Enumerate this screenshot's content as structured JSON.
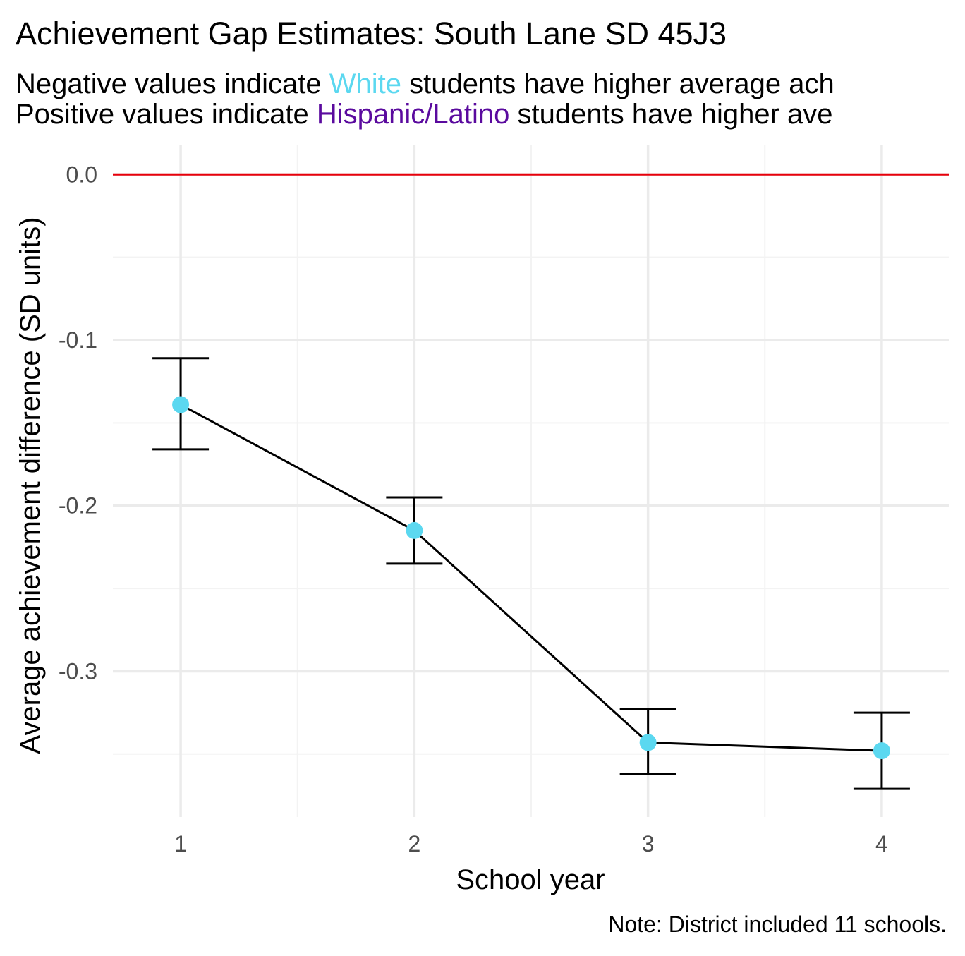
{
  "title": "Achievement Gap Estimates: South Lane SD 45J3",
  "subtitle": {
    "line1": {
      "prefix": "Negative values indicate ",
      "group": "White",
      "suffix": " students have higher average ach"
    },
    "line2": {
      "prefix": "Positive values indicate ",
      "group": "Hispanic/Latino",
      "suffix": " students have higher ave"
    }
  },
  "caption": "Note: District included 11 schools.",
  "colors": {
    "white_group": "#5bd8f0",
    "hispanic_group": "#5a0a9e",
    "reference_line": "#e8000b",
    "point": "#5bd8f0",
    "line": "#000000",
    "grid_major": "#ebebeb",
    "grid_minor": "#f3f3f3",
    "tick_text": "#4d4d4d"
  },
  "chart_data": {
    "type": "line",
    "xlabel": "School year",
    "ylabel": "Average achievement difference (SD units)",
    "x_ticks": [
      "1",
      "2",
      "3",
      "4"
    ],
    "y_ticks": [
      "0.0",
      "-0.1",
      "-0.2",
      "-0.3"
    ],
    "y_tick_values": [
      0.0,
      -0.1,
      -0.2,
      -0.3
    ],
    "xlim": [
      0.71,
      4.29
    ],
    "ylim": [
      -0.388,
      0.018
    ],
    "reference_line_y": 0.0,
    "grid": true,
    "series": [
      {
        "x": [
          1,
          2,
          3,
          4
        ],
        "values": [
          -0.139,
          -0.215,
          -0.343,
          -0.348
        ],
        "error_low": [
          -0.166,
          -0.235,
          -0.362,
          -0.371
        ],
        "error_high": [
          -0.111,
          -0.195,
          -0.323,
          -0.325
        ]
      }
    ]
  }
}
